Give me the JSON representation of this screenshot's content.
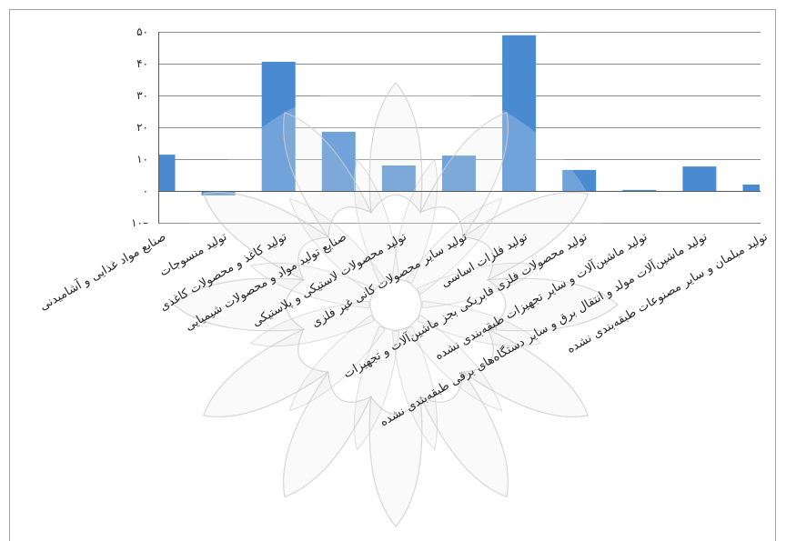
{
  "chart_data": {
    "type": "bar",
    "categories": [
      "صنایع مواد غذایی و آشامیدنی",
      "تولید منسوجات",
      "تولید کاغذ و محصولات کاغذی",
      "صنایع تولید مواد و محصولات شیمیایی",
      "تولید محصولات لاستیکی و پلاستیکی",
      "تولید سایر محصولات کانی غیر فلزی",
      "تولید فلزات اساسی",
      "تولید محصولات فلزی فابریکی بجز ماشین‌آلات و تجهیزات",
      "تولید ماشین‌آلات و سایر تجهیزات طبقه‌بندی نشده",
      "تولید ماشین‌آلات مولد و انتقال برق و سایر دستگاه‌های برقی طبقه‌بندی نشده",
      "تولید مبلمان و سایر مصنوعات طبقه‌بندی نشده"
    ],
    "values": [
      11.4,
      -1.4,
      40.6,
      18.6,
      8.0,
      11.1,
      48.9,
      6.6,
      0.3,
      7.7,
      2.0
    ],
    "ylim": [
      -10,
      50
    ],
    "yticks": [
      50,
      40,
      30,
      20,
      10,
      0,
      -10
    ],
    "ytick_labels": [
      "۵۰",
      "۴۰",
      "۳۰",
      "۲۰",
      "۱۰",
      "۰",
      "۱۰–"
    ],
    "grid": true,
    "bar_color": "#4a8ad0",
    "gridline_color": "#8c8c8c",
    "axis_color": "#595959"
  }
}
